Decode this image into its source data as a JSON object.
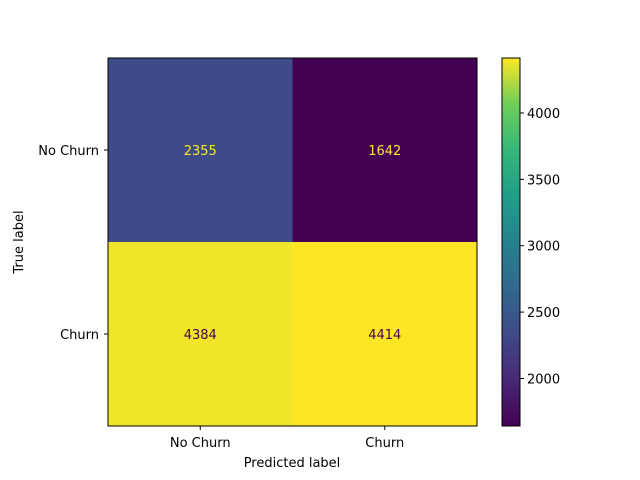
{
  "chart_data": {
    "type": "heatmap",
    "title": "",
    "xlabel": "Predicted label",
    "ylabel": "True label",
    "x_categories": [
      "No  Churn",
      "Churn"
    ],
    "y_categories": [
      "No Churn",
      "Churn"
    ],
    "values": [
      [
        2355,
        1642
      ],
      [
        4384,
        4414
      ]
    ],
    "colormap": "viridis",
    "colorbar": {
      "min": 1642,
      "max": 4414,
      "ticks": [
        2000,
        2500,
        3000,
        3500,
        4000
      ],
      "tick_labels": [
        "2000",
        "2500",
        "3000",
        "3500",
        "4000"
      ]
    },
    "text_color_dark_cell": "#fde725",
    "text_color_light_cell": "#440154",
    "grid": false
  }
}
